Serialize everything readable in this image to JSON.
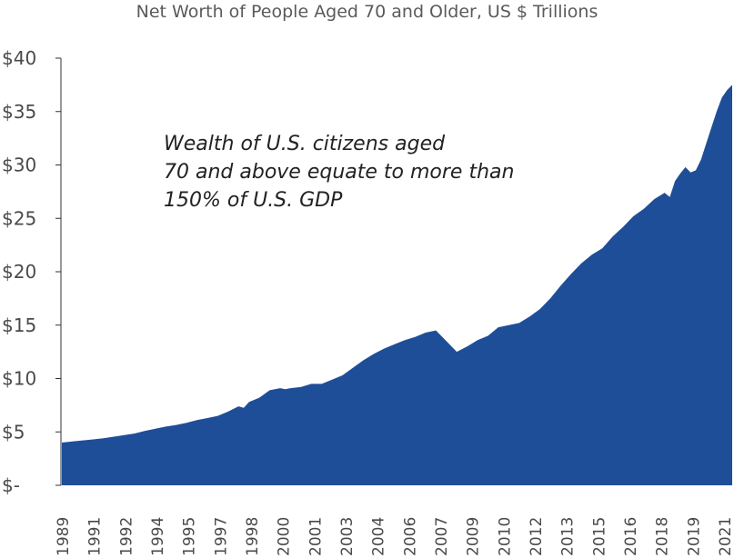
{
  "chart_data": {
    "type": "area",
    "title": "Net Worth of People Aged 70 and Older, US $ Trillions",
    "xlabel": "",
    "ylabel": "",
    "ylim": [
      0,
      40
    ],
    "y_ticks": [
      "$-",
      "$5",
      "$10",
      "$15",
      "$20",
      "$25",
      "$30",
      "$35",
      "$40"
    ],
    "x_ticks": [
      "1989",
      "1991",
      "1992",
      "1994",
      "1995",
      "1997",
      "1998",
      "2000",
      "2001",
      "2003",
      "2004",
      "2006",
      "2007",
      "2009",
      "2010",
      "2012",
      "2013",
      "2015",
      "2016",
      "2018",
      "2019",
      "2021"
    ],
    "annotation": [
      "Wealth of U.S. citizens aged",
      "70 and above equate to more than",
      "150% of U.S. GDP"
    ],
    "grid": false,
    "color": "#1f4e99",
    "series": [
      {
        "x": [
          1989.5,
          1990.0,
          1990.5,
          1991.0,
          1991.5,
          1992.0,
          1992.5,
          1993.0,
          1993.5,
          1994.0,
          1994.5,
          1995.0,
          1995.5,
          1996.0,
          1996.5,
          1997.0,
          1997.5,
          1998.0,
          1998.25,
          1998.5,
          1998.75,
          1999.0,
          1999.5,
          2000.0,
          2000.25,
          2000.5,
          2001.0,
          2001.5,
          2002.0,
          2002.5,
          2003.0,
          2003.5,
          2004.0,
          2004.5,
          2005.0,
          2005.5,
          2006.0,
          2006.5,
          2007.0,
          2007.5,
          2008.0,
          2008.5,
          2009.0,
          2009.5,
          2010.0,
          2010.5,
          2011.0,
          2011.5,
          2012.0,
          2012.5,
          2013.0,
          2013.5,
          2014.0,
          2014.5,
          2015.0,
          2015.5,
          2016.0,
          2016.5,
          2017.0,
          2017.5,
          2018.0,
          2018.5,
          2018.75,
          2019.0,
          2019.25,
          2019.5,
          2019.75,
          2020.0,
          2020.25,
          2020.5,
          2020.75,
          2021.0,
          2021.25,
          2021.5,
          2021.75
        ],
        "values": [
          4.0,
          4.1,
          4.2,
          4.3,
          4.4,
          4.55,
          4.7,
          4.85,
          5.1,
          5.3,
          5.5,
          5.65,
          5.85,
          6.1,
          6.3,
          6.5,
          6.9,
          7.4,
          7.25,
          7.8,
          8.0,
          8.2,
          8.9,
          9.1,
          9.0,
          9.1,
          9.2,
          9.5,
          9.5,
          9.9,
          10.3,
          11.0,
          11.7,
          12.3,
          12.8,
          13.2,
          13.6,
          13.9,
          14.3,
          14.5,
          13.5,
          12.5,
          13.0,
          13.6,
          14.0,
          14.8,
          15.0,
          15.2,
          15.8,
          16.5,
          17.5,
          18.7,
          19.8,
          20.8,
          21.6,
          22.2,
          23.3,
          24.2,
          25.2,
          25.9,
          26.8,
          27.4,
          27.0,
          28.5,
          29.2,
          29.8,
          29.3,
          29.5,
          30.5,
          32.0,
          33.5,
          35.0,
          36.3,
          37.0,
          37.5
        ]
      }
    ]
  }
}
